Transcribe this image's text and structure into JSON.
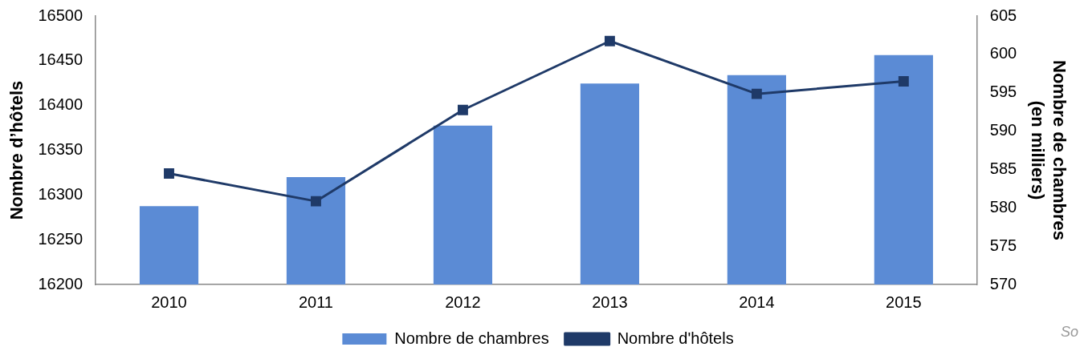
{
  "chart_data": {
    "type": "bar",
    "categories": [
      "2010",
      "2011",
      "2012",
      "2013",
      "2014",
      "2015"
    ],
    "series": [
      {
        "name": "Nombre de chambres",
        "axis": "y2",
        "color": "#5b8bd5",
        "values": [
          580.2,
          584.0,
          590.7,
          596.2,
          597.3,
          599.9
        ]
      },
      {
        "name": "Nombre d'hôtels",
        "type": "line",
        "axis": "y",
        "color": "#1f3a68",
        "values": [
          16324,
          16293,
          16395,
          16472,
          16413,
          16427
        ]
      }
    ],
    "ylabel": "Nombre d’hôtels",
    "y2label": "Nombre de chambres\n(en milliers)",
    "ylim": [
      16200,
      16500
    ],
    "yticks": [
      16200,
      16250,
      16300,
      16350,
      16400,
      16450,
      16500
    ],
    "y2lim": [
      570,
      605
    ],
    "y2ticks": [
      570,
      575,
      580,
      585,
      590,
      595,
      600,
      605
    ],
    "marker": "square",
    "legend": "bottom",
    "grid": false,
    "annotations": [
      "So"
    ]
  }
}
